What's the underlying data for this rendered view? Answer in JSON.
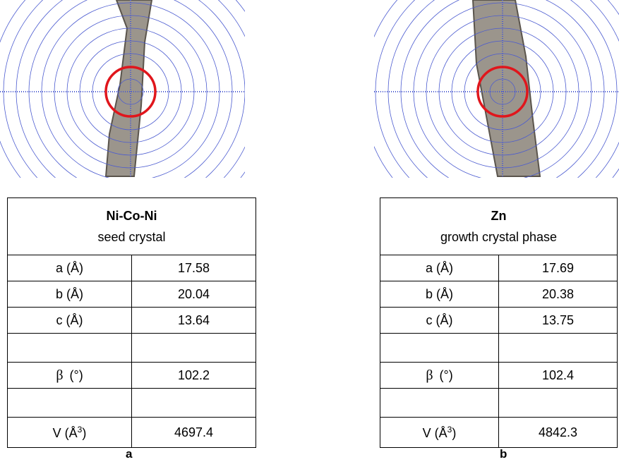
{
  "panels": [
    {
      "title": "Ni-Co-Ni",
      "subtitle": "seed crystal",
      "label": "a",
      "rows": [
        {
          "label": "a (Å)",
          "value": 17.58
        },
        {
          "label": "b (Å)",
          "value": 20.04
        },
        {
          "label": "c (Å)",
          "value": 13.64
        },
        null,
        {
          "symbol": "β",
          "label": "(°)",
          "value": 102.2
        },
        null,
        {
          "label": "V (Å",
          "sup": "3",
          "end": ")",
          "value": 4697.4
        }
      ]
    },
    {
      "title": "Zn",
      "subtitle": "growth crystal phase",
      "label": "b",
      "rows": [
        {
          "label": "a (Å)",
          "value": 17.69
        },
        {
          "label": "b (Å)",
          "value": 20.38
        },
        {
          "label": "c (Å)",
          "value": 13.75
        },
        null,
        {
          "symbol": "β",
          "label": "(°)",
          "value": 102.4
        },
        null,
        {
          "label": "V (Å",
          "sup": "3",
          "end": ")",
          "value": 4842.3
        }
      ]
    }
  ]
}
